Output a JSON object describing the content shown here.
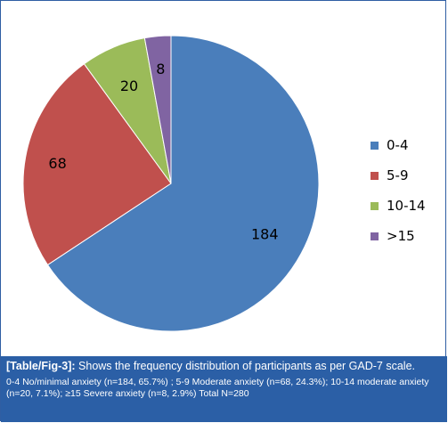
{
  "chart_data": {
    "type": "pie",
    "title": "",
    "categories": [
      "0-4",
      "5-9",
      "10-14",
      ">15"
    ],
    "values": [
      184,
      68,
      20,
      8
    ],
    "colors": [
      "#4a7ebb",
      "#c0504d",
      "#9bbb59",
      "#8064a2"
    ],
    "data_labels": [
      "184",
      "68",
      "20",
      "8"
    ],
    "legend_position": "right",
    "start_angle_deg": 0,
    "direction": "clockwise"
  },
  "caption": {
    "ref": "[Table/Fig-3]:",
    "title": "Shows the frequency distribution of participants as per GAD-7 scale.",
    "note": "0-4 No/minimal anxiety (n=184, 65.7%) ; 5-9 Moderate anxiety (n=68, 24.3%); 10-14 moderate anxiety (n=20, 7.1%); ≥15 Severe anxiety (n=8, 2.9%) Total N=280",
    "background": "#2b5fa6"
  }
}
